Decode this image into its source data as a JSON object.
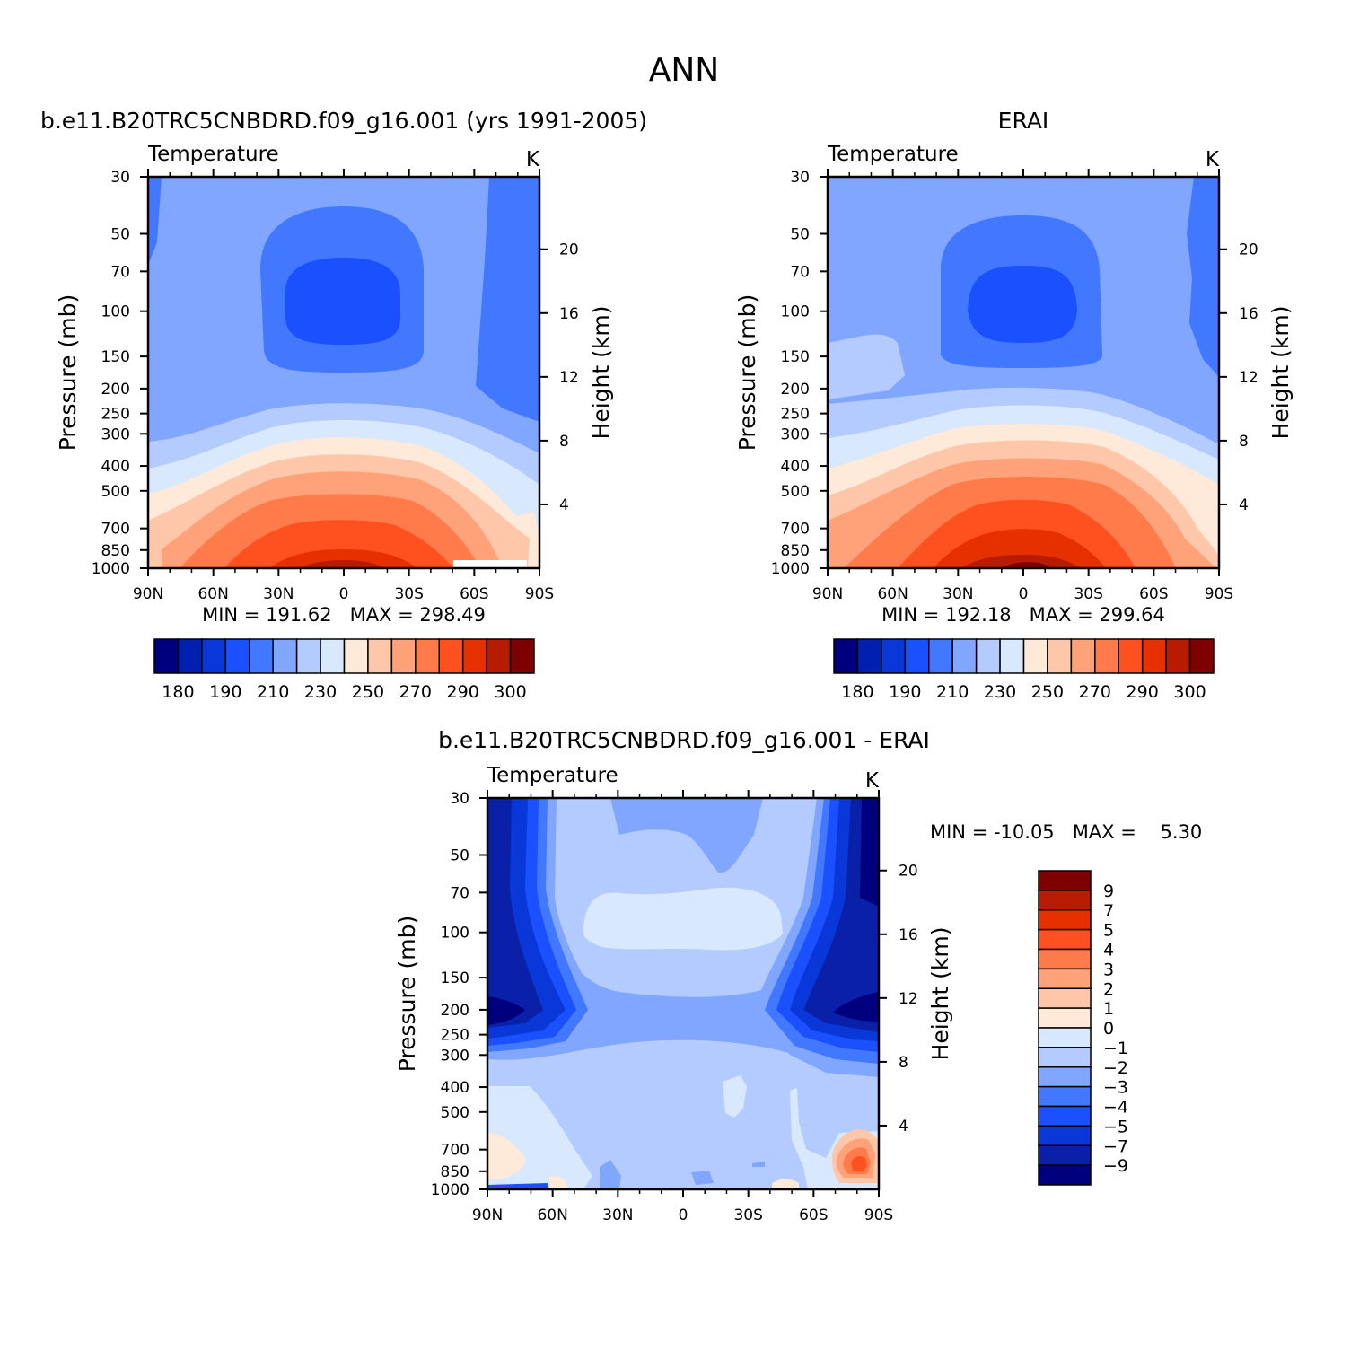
{
  "page": {
    "title": "ANN"
  },
  "colors": {
    "model_obs_palette": [
      "#00007f",
      "#0020b0",
      "#0a38d8",
      "#1a50ff",
      "#4277ff",
      "#80a6ff",
      "#b3cbff",
      "#d8e8ff",
      "#ffe9d8",
      "#ffc7aa",
      "#ffa27a",
      "#ff7b4a",
      "#ff5020",
      "#e63000",
      "#b81c00",
      "#7f0000"
    ],
    "diff_palette": [
      "#00007f",
      "#0a20a8",
      "#0a38d8",
      "#1a50ff",
      "#4277ff",
      "#80a6ff",
      "#b3cbff",
      "#d8e8ff",
      "#ffe9d8",
      "#ffc7aa",
      "#ffa27a",
      "#ff7b4a",
      "#ff5020",
      "#e63000",
      "#b81c00",
      "#7f0000"
    ]
  },
  "chart_data": [
    {
      "type": "contour",
      "panel_title": "b.e11.B20TRC5CNBDRD.f09_g16.001 (yrs 1991-2005)",
      "left_string": "Temperature",
      "right_string": "K",
      "xlabel": "",
      "ylabel": "Pressure (mb)",
      "y2label": "Height (km)",
      "x_ticks": [
        "90N",
        "60N",
        "30N",
        "0",
        "30S",
        "60S",
        "90S"
      ],
      "y_ticks": [
        "30",
        "50",
        "70",
        "100",
        "150",
        "200",
        "250",
        "300",
        "400",
        "500",
        "700",
        "850",
        "1000"
      ],
      "y2_ticks": [
        "20",
        "16",
        "12",
        "8",
        "4"
      ],
      "stats": "MIN = 191.62   MAX = 298.49",
      "colorbar": {
        "orientation": "horizontal",
        "labels": [
          "180",
          "190",
          "210",
          "230",
          "250",
          "270",
          "290",
          "300"
        ]
      },
      "contour_levels": [
        180,
        185,
        190,
        200,
        210,
        220,
        230,
        240,
        250,
        260,
        270,
        280,
        290,
        295,
        300
      ]
    },
    {
      "type": "contour",
      "panel_title": "ERAI",
      "left_string": "Temperature",
      "right_string": "K",
      "ylabel": "Pressure (mb)",
      "y2label": "Height (km)",
      "x_ticks": [
        "90N",
        "60N",
        "30N",
        "0",
        "30S",
        "60S",
        "90S"
      ],
      "y_ticks": [
        "30",
        "50",
        "70",
        "100",
        "150",
        "200",
        "250",
        "300",
        "400",
        "500",
        "700",
        "850",
        "1000"
      ],
      "y2_ticks": [
        "20",
        "16",
        "12",
        "8",
        "4"
      ],
      "stats": "MIN = 192.18   MAX = 299.64",
      "colorbar": {
        "orientation": "horizontal",
        "labels": [
          "180",
          "190",
          "210",
          "230",
          "250",
          "270",
          "290",
          "300"
        ]
      },
      "contour_levels": [
        180,
        185,
        190,
        200,
        210,
        220,
        230,
        240,
        250,
        260,
        270,
        280,
        290,
        295,
        300
      ]
    },
    {
      "type": "contour",
      "panel_title": "b.e11.B20TRC5CNBDRD.f09_g16.001 - ERAI",
      "left_string": "Temperature",
      "right_string": "K",
      "ylabel": "Pressure (mb)",
      "y2label": "Height (km)",
      "x_ticks": [
        "90N",
        "60N",
        "30N",
        "0",
        "30S",
        "60S",
        "90S"
      ],
      "y_ticks": [
        "30",
        "50",
        "70",
        "100",
        "150",
        "200",
        "250",
        "300",
        "400",
        "500",
        "700",
        "850",
        "1000"
      ],
      "y2_ticks": [
        "20",
        "16",
        "12",
        "8",
        "4"
      ],
      "stats": "MIN = -10.05   MAX =    5.30",
      "colorbar": {
        "orientation": "vertical",
        "labels": [
          "9",
          "7",
          "5",
          "4",
          "3",
          "2",
          "1",
          "0",
          "-1",
          "-2",
          "-3",
          "-4",
          "-5",
          "-7",
          "-9"
        ]
      },
      "contour_levels": [
        -9,
        -7,
        -5,
        -4,
        -3,
        -2,
        -1,
        0,
        1,
        2,
        3,
        4,
        5,
        7,
        9
      ]
    }
  ]
}
